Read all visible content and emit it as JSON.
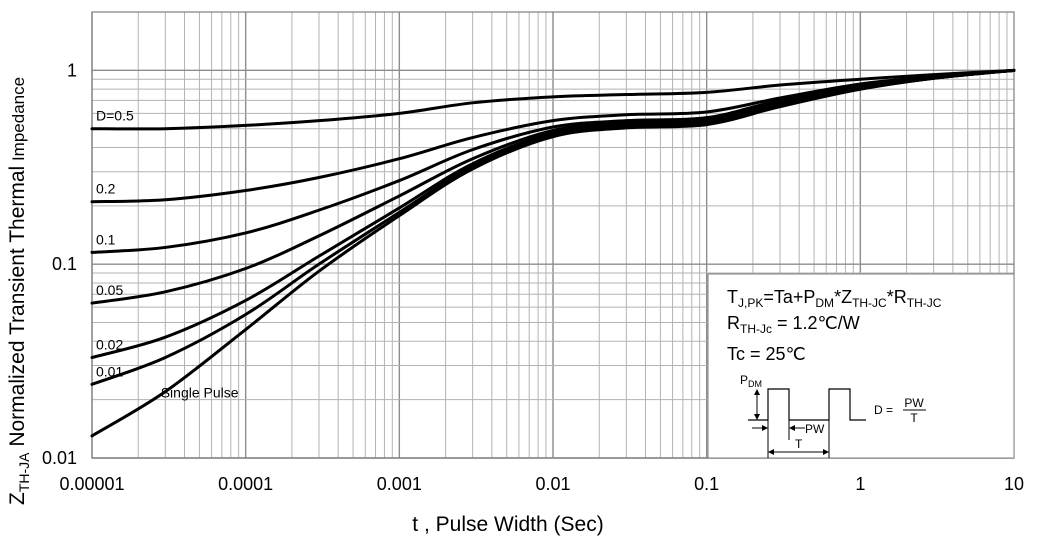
{
  "chart_data": {
    "type": "line",
    "title": "",
    "xlabel": "t , Pulse Width (Sec)",
    "ylabel": {
      "z": "Z",
      "sub": "TH-JA",
      "main": " Normalized Transient Thermal",
      "tail": " Impedance"
    },
    "xscale": "log",
    "yscale": "log",
    "xlim": [
      1e-05,
      10
    ],
    "ylim": [
      0.01,
      2
    ],
    "grid": true,
    "x_ticks": [
      {
        "value": 1e-05,
        "label": "0.00001"
      },
      {
        "value": 0.0001,
        "label": "0.0001"
      },
      {
        "value": 0.001,
        "label": "0.001"
      },
      {
        "value": 0.01,
        "label": "0.01"
      },
      {
        "value": 0.1,
        "label": "0.1"
      },
      {
        "value": 1,
        "label": "1"
      },
      {
        "value": 10,
        "label": "10"
      }
    ],
    "y_ticks": [
      {
        "value": 0.01,
        "label": "0.01"
      },
      {
        "value": 0.1,
        "label": "0.1"
      },
      {
        "value": 1,
        "label": "1"
      }
    ],
    "series": [
      {
        "name": "D=0.5",
        "label": "D=0.5",
        "points": [
          [
            1e-05,
            0.5
          ],
          [
            3e-05,
            0.5
          ],
          [
            0.0001,
            0.52
          ],
          [
            0.0003,
            0.55
          ],
          [
            0.001,
            0.6
          ],
          [
            0.003,
            0.68
          ],
          [
            0.01,
            0.73
          ],
          [
            0.03,
            0.75
          ],
          [
            0.1,
            0.77
          ],
          [
            0.3,
            0.84
          ],
          [
            1,
            0.9
          ],
          [
            3,
            0.95
          ],
          [
            10,
            1.0
          ]
        ]
      },
      {
        "name": "D=0.2",
        "label": "0.2",
        "points": [
          [
            1e-05,
            0.21
          ],
          [
            3e-05,
            0.215
          ],
          [
            0.0001,
            0.24
          ],
          [
            0.0003,
            0.28
          ],
          [
            0.001,
            0.35
          ],
          [
            0.003,
            0.45
          ],
          [
            0.01,
            0.55
          ],
          [
            0.03,
            0.59
          ],
          [
            0.1,
            0.61
          ],
          [
            0.3,
            0.72
          ],
          [
            1,
            0.85
          ],
          [
            3,
            0.93
          ],
          [
            10,
            1.0
          ]
        ]
      },
      {
        "name": "D=0.1",
        "label": "0.1",
        "points": [
          [
            1e-05,
            0.115
          ],
          [
            3e-05,
            0.122
          ],
          [
            0.0001,
            0.145
          ],
          [
            0.0003,
            0.19
          ],
          [
            0.001,
            0.27
          ],
          [
            0.003,
            0.39
          ],
          [
            0.01,
            0.51
          ],
          [
            0.03,
            0.55
          ],
          [
            0.1,
            0.57
          ],
          [
            0.3,
            0.7
          ],
          [
            1,
            0.83
          ],
          [
            3,
            0.92
          ],
          [
            10,
            1.0
          ]
        ]
      },
      {
        "name": "D=0.05",
        "label": "0.05",
        "points": [
          [
            1e-05,
            0.063
          ],
          [
            3e-05,
            0.072
          ],
          [
            0.0001,
            0.095
          ],
          [
            0.0003,
            0.14
          ],
          [
            0.001,
            0.225
          ],
          [
            0.003,
            0.35
          ],
          [
            0.01,
            0.49
          ],
          [
            0.03,
            0.535
          ],
          [
            0.1,
            0.555
          ],
          [
            0.3,
            0.68
          ],
          [
            1,
            0.82
          ],
          [
            3,
            0.92
          ],
          [
            10,
            1.0
          ]
        ]
      },
      {
        "name": "D=0.02",
        "label": "0.02",
        "points": [
          [
            1e-05,
            0.033
          ],
          [
            3e-05,
            0.042
          ],
          [
            0.0001,
            0.065
          ],
          [
            0.0003,
            0.11
          ],
          [
            0.001,
            0.195
          ],
          [
            0.003,
            0.33
          ],
          [
            0.01,
            0.475
          ],
          [
            0.03,
            0.525
          ],
          [
            0.1,
            0.545
          ],
          [
            0.3,
            0.67
          ],
          [
            1,
            0.81
          ],
          [
            3,
            0.91
          ],
          [
            10,
            1.0
          ]
        ]
      },
      {
        "name": "D=0.01",
        "label": "0.01",
        "points": [
          [
            1e-05,
            0.024
          ],
          [
            3e-05,
            0.033
          ],
          [
            0.0001,
            0.055
          ],
          [
            0.0003,
            0.1
          ],
          [
            0.001,
            0.185
          ],
          [
            0.003,
            0.32
          ],
          [
            0.01,
            0.465
          ],
          [
            0.03,
            0.515
          ],
          [
            0.1,
            0.535
          ],
          [
            0.3,
            0.66
          ],
          [
            1,
            0.8
          ],
          [
            3,
            0.91
          ],
          [
            10,
            1.0
          ]
        ]
      },
      {
        "name": "Single Pulse",
        "label": "Single Pulse",
        "points": [
          [
            1e-05,
            0.013
          ],
          [
            3e-05,
            0.022
          ],
          [
            0.0001,
            0.046
          ],
          [
            0.0003,
            0.092
          ],
          [
            0.001,
            0.178
          ],
          [
            0.003,
            0.31
          ],
          [
            0.01,
            0.455
          ],
          [
            0.03,
            0.505
          ],
          [
            0.1,
            0.525
          ],
          [
            0.3,
            0.65
          ],
          [
            1,
            0.8
          ],
          [
            3,
            0.91
          ],
          [
            10,
            1.0
          ]
        ]
      }
    ],
    "annotation": {
      "line1": {
        "a": "T",
        "a_sub": "J,PK",
        "b": "=Ta+P",
        "b_sub": "DM",
        "c": "*Z",
        "c_sub": "TH-JC",
        "d": "*R",
        "d_sub": "TH-JC"
      },
      "line2": {
        "a": "R",
        "a_sub": "TH-Jc",
        "b": " = 1.2℃/W"
      },
      "line3": "Tc = 25℃",
      "pulse": {
        "pdm": "P",
        "pdm_sub": "DM",
        "pw": "PW",
        "t": "T",
        "d_eq": "D =",
        "frac_num": "PW",
        "frac_den": "T"
      }
    }
  }
}
